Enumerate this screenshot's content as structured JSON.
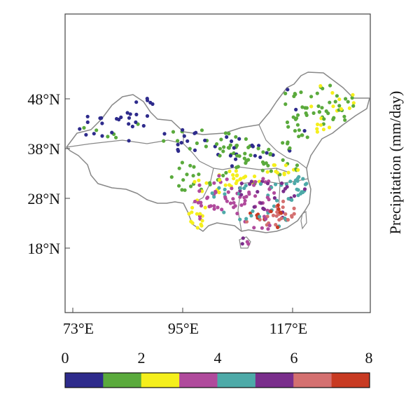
{
  "map": {
    "lat_ticks": [
      {
        "value": 48,
        "label": "48°N"
      },
      {
        "value": 38,
        "label": "38°N"
      },
      {
        "value": 28,
        "label": "28°N"
      },
      {
        "value": 18,
        "label": "18°N"
      }
    ],
    "lon_ticks": [
      {
        "value": 73,
        "label": "73°E"
      },
      {
        "value": 95,
        "label": "95°E"
      },
      {
        "value": 117,
        "label": "117°E"
      }
    ],
    "lon_range": [
      71.5,
      132.5
    ],
    "lat_range": [
      5,
      66
    ],
    "colorbar": {
      "title": "Precipitation (mm/day)",
      "tick_labels": [
        "0",
        "2",
        "4",
        "6",
        "8"
      ],
      "tick_values": [
        0,
        2,
        4,
        6,
        8
      ],
      "bins": [
        0,
        1,
        2,
        3,
        4,
        5,
        6,
        7,
        8
      ],
      "colors": [
        "#2e2b8c",
        "#5aaa3c",
        "#f5ef1c",
        "#b04a9c",
        "#4daaa8",
        "#7a2e8c",
        "#d47070",
        "#c83a22"
      ]
    },
    "boundary_color": "#888888"
  }
}
